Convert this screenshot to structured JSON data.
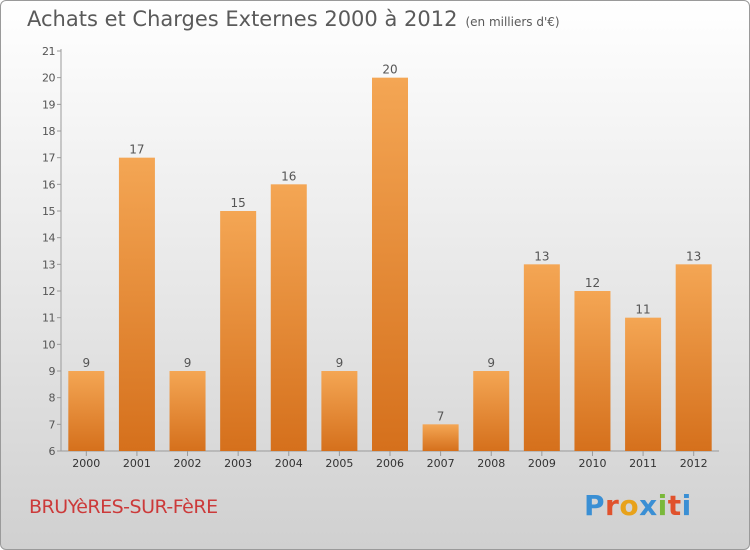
{
  "title": "Achats et Charges Externes 2000 à 2012",
  "unit": "(en milliers d'€)",
  "commune": "BRUYèRES-SUR-FèRE",
  "logo": {
    "letters": [
      "P",
      "r",
      "o",
      "x",
      "i",
      "t",
      "i"
    ],
    "colors": [
      "#3a8fd4",
      "#e0522d",
      "#e8a21a",
      "#3a8fd4",
      "#7ab83a",
      "#e0522d",
      "#3a8fd4"
    ]
  },
  "colors": {
    "bar_top": "#f4a654",
    "bar_bottom": "#d5701c",
    "axis": "#9a9a9a",
    "text": "#555555"
  },
  "chart_data": {
    "type": "bar",
    "categories": [
      "2000",
      "2001",
      "2002",
      "2003",
      "2004",
      "2005",
      "2006",
      "2007",
      "2008",
      "2009",
      "2010",
      "2011",
      "2012"
    ],
    "values": [
      9,
      17,
      9,
      15,
      16,
      9,
      20,
      7,
      9,
      13,
      12,
      11,
      13
    ],
    "yticks": [
      6,
      7,
      8,
      9,
      10,
      11,
      12,
      13,
      14,
      15,
      16,
      17,
      18,
      19,
      20,
      21
    ],
    "ylim": [
      6,
      21
    ],
    "grid": false,
    "xlabel": "",
    "ylabel": ""
  }
}
